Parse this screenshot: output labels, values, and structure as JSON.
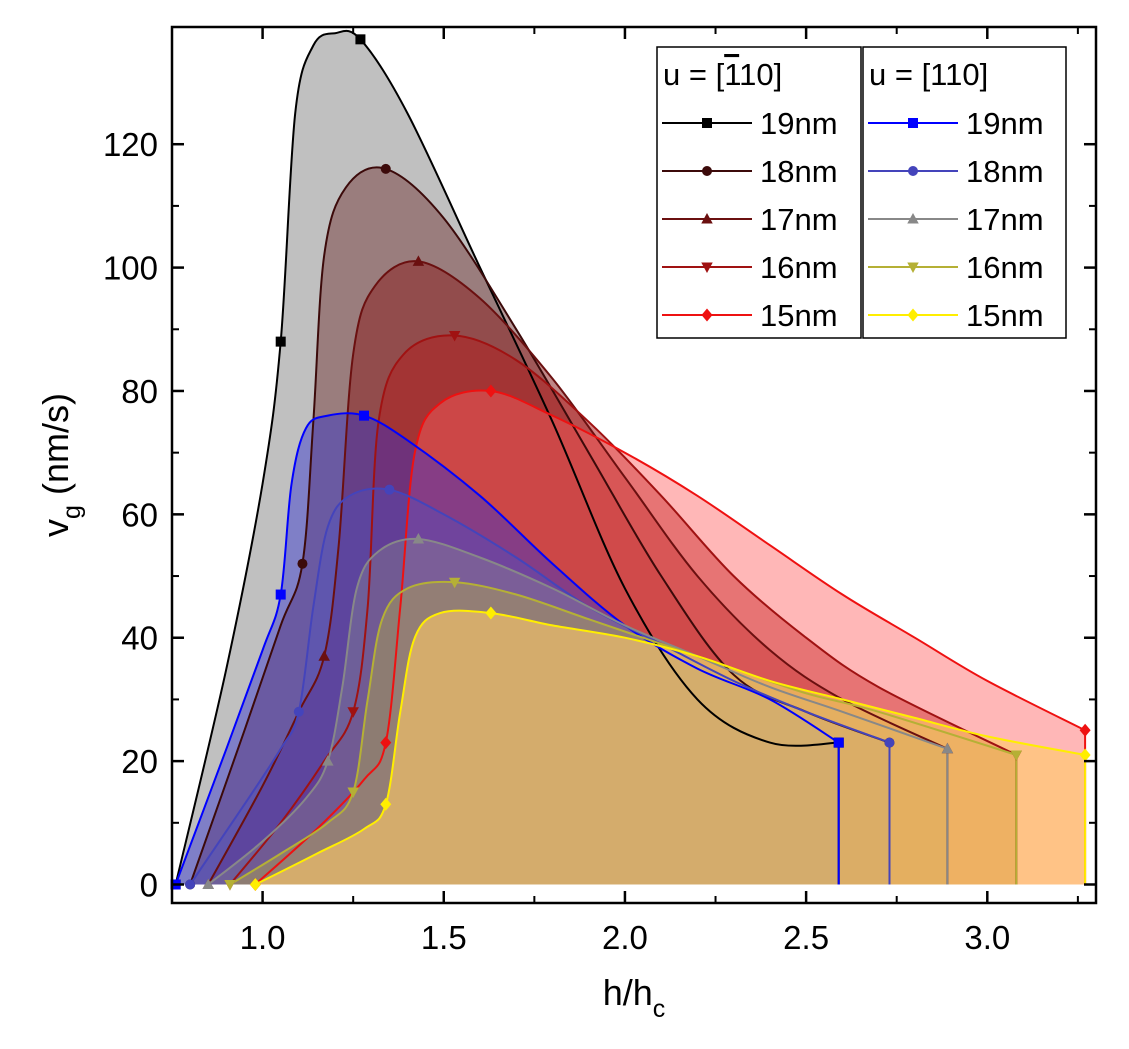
{
  "chart_data": {
    "type": "area",
    "title": "",
    "xlabel": "h/h",
    "xlabel_sub": "c",
    "ylabel": "v",
    "ylabel_sub": "g",
    "ylabel_unit": " (nm/s)",
    "xlim": [
      0.75,
      3.3
    ],
    "ylim": [
      -3,
      139
    ],
    "xticks": [
      1.0,
      1.5,
      2.0,
      2.5,
      3.0
    ],
    "xtick_labels": [
      "1.0",
      "1.5",
      "2.0",
      "2.5",
      "3.0"
    ],
    "yticks": [
      0,
      20,
      40,
      60,
      80,
      100,
      120
    ],
    "ytick_labels": [
      "0",
      "20",
      "40",
      "60",
      "80",
      "100",
      "120"
    ],
    "grid": false,
    "legend_placement": "top-right",
    "legend_groups": [
      {
        "title": "u = [",
        "title_bar_digit": "1",
        "title_rest": "10]",
        "series": [
          {
            "name": "19nm",
            "color": "#000000",
            "fill": "#8c8c8c",
            "opacity": 0.55,
            "marker": "square",
            "x": [
              0.76,
              0.9,
              1.0,
              1.05,
              1.09,
              1.14,
              1.2,
              1.27,
              1.4,
              1.6,
              1.8,
              2.0,
              2.2,
              2.4,
              2.59,
              2.59
            ],
            "y": [
              0,
              35,
              65,
              88,
              125,
              136,
              138,
              137,
              125,
              100,
              75,
              48,
              30,
              23,
              23,
              0
            ]
          },
          {
            "name": "18nm",
            "color": "#3c0a0a",
            "fill": "#7a4545",
            "opacity": 0.55,
            "marker": "circle",
            "x": [
              0.8,
              0.95,
              1.05,
              1.11,
              1.14,
              1.17,
              1.23,
              1.34,
              1.5,
              1.7,
              1.9,
              2.1,
              2.3,
              2.5,
              2.73,
              2.73
            ],
            "y": [
              0,
              25,
              42,
              52,
              75,
              102,
              113,
              116,
              108,
              90,
              70,
              50,
              34,
              28,
              23,
              0
            ]
          },
          {
            "name": "17nm",
            "color": "#6b1010",
            "fill": "#8c2525",
            "opacity": 0.55,
            "marker": "triangle-up",
            "x": [
              0.85,
              1.0,
              1.1,
              1.17,
              1.21,
              1.25,
              1.31,
              1.43,
              1.6,
              1.8,
              2.0,
              2.2,
              2.4,
              2.6,
              2.89,
              2.89
            ],
            "y": [
              0,
              16,
              28,
              37,
              55,
              86,
              97,
              101,
              95,
              82,
              66,
              50,
              38,
              30,
              22,
              0
            ]
          },
          {
            "name": "16nm",
            "color": "#a01212",
            "fill": "#b02020",
            "opacity": 0.55,
            "marker": "triangle-down",
            "x": [
              0.91,
              1.05,
              1.17,
              1.25,
              1.29,
              1.32,
              1.39,
              1.53,
              1.7,
              1.9,
              2.1,
              2.3,
              2.5,
              2.7,
              3.08,
              3.08
            ],
            "y": [
              0,
              10,
              20,
              28,
              45,
              75,
              86,
              89,
              85,
              75,
              63,
              50,
              40,
              32,
              21,
              0
            ]
          },
          {
            "name": "15nm",
            "color": "#ee1111",
            "fill": "#ff6060",
            "opacity": 0.45,
            "marker": "diamond",
            "x": [
              0.98,
              1.15,
              1.28,
              1.34,
              1.38,
              1.42,
              1.49,
              1.63,
              1.8,
              2.0,
              2.2,
              2.4,
              2.6,
              2.8,
              3.0,
              3.27,
              3.27
            ],
            "y": [
              0,
              9,
              17,
              23,
              45,
              70,
              78,
              80,
              76,
              70,
              63,
              55,
              47,
              40,
              33,
              25,
              0
            ]
          }
        ]
      },
      {
        "title": "u = [110]",
        "series": [
          {
            "name": "19nm",
            "color": "#0000ff",
            "fill": "#3030d0",
            "opacity": 0.45,
            "marker": "square",
            "x": [
              0.76,
              0.9,
              1.0,
              1.05,
              1.08,
              1.12,
              1.18,
              1.28,
              1.4,
              1.6,
              1.8,
              2.0,
              2.2,
              2.4,
              2.59,
              2.59
            ],
            "y": [
              0,
              22,
              38,
              47,
              65,
              74,
              76,
              76,
              72,
              63,
              52,
              42,
              35,
              30,
              23,
              0
            ]
          },
          {
            "name": "18nm",
            "color": "#4444bb",
            "fill": "#5050c0",
            "opacity": 0.4,
            "marker": "circle",
            "x": [
              0.8,
              0.95,
              1.05,
              1.1,
              1.14,
              1.18,
              1.24,
              1.35,
              1.5,
              1.7,
              1.9,
              2.1,
              2.3,
              2.5,
              2.73,
              2.73
            ],
            "y": [
              0,
              13,
              22,
              28,
              45,
              58,
              63,
              64,
              60,
              53,
              45,
              39,
              33,
              28,
              23,
              0
            ]
          },
          {
            "name": "17nm",
            "color": "#888888",
            "fill": "#909090",
            "opacity": 0.35,
            "marker": "triangle-up",
            "x": [
              0.85,
              1.0,
              1.12,
              1.18,
              1.22,
              1.26,
              1.32,
              1.43,
              1.6,
              1.8,
              2.0,
              2.2,
              2.4,
              2.6,
              2.89,
              2.89
            ],
            "y": [
              0,
              7,
              14,
              20,
              32,
              48,
              54,
              56,
              53,
              48,
              42,
              37,
              32,
              28,
              22,
              0
            ]
          },
          {
            "name": "16nm",
            "color": "#b5b035",
            "fill": "#b8b040",
            "opacity": 0.4,
            "marker": "triangle-down",
            "x": [
              0.91,
              1.05,
              1.18,
              1.25,
              1.29,
              1.33,
              1.4,
              1.53,
              1.7,
              1.9,
              2.1,
              2.3,
              2.5,
              2.7,
              3.08,
              3.08
            ],
            "y": [
              0,
              5,
              10,
              15,
              30,
              43,
              48,
              49,
              47,
              43,
              39,
              35,
              31,
              28,
              21,
              0
            ]
          },
          {
            "name": "15nm",
            "color": "#ffee00",
            "fill": "#ffcc66",
            "opacity": 0.6,
            "marker": "diamond",
            "x": [
              0.98,
              1.15,
              1.28,
              1.34,
              1.38,
              1.42,
              1.49,
              1.63,
              1.8,
              2.0,
              2.2,
              2.4,
              2.6,
              2.8,
              3.0,
              3.27,
              3.27
            ],
            "y": [
              0,
              5,
              9,
              13,
              28,
              40,
              44,
              44,
              42,
              40,
              37,
              33,
              30,
              27,
              24,
              21,
              0
            ]
          }
        ]
      }
    ]
  }
}
